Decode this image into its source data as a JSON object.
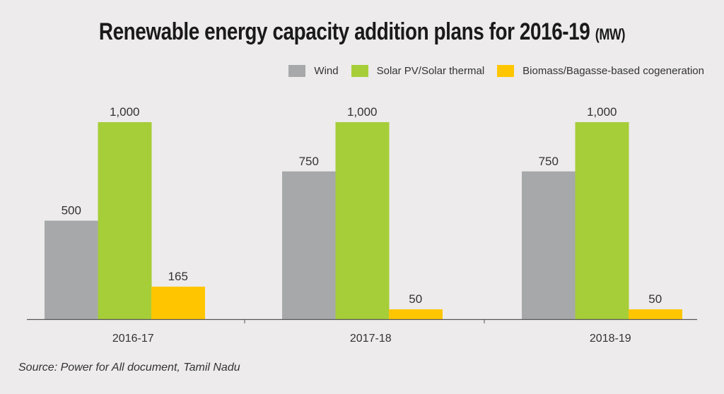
{
  "chart_data": {
    "type": "bar",
    "title": "Renewable energy capacity addition plans for 2016-19",
    "title_unit": "(MW)",
    "xlabel": "",
    "ylabel": "",
    "ylim": [
      0,
      1000
    ],
    "grid": false,
    "legend_position": "top-right",
    "categories": [
      "2016-17",
      "2017-18",
      "2018-19"
    ],
    "series": [
      {
        "name": "Wind",
        "color": "#a7a8aa",
        "values": [
          500,
          750,
          750
        ],
        "labels": [
          "500",
          "750",
          "750"
        ]
      },
      {
        "name": "Solar PV/Solar thermal",
        "color": "#a6ce39",
        "values": [
          1000,
          1000,
          1000
        ],
        "labels": [
          "1,000",
          "1,000",
          "1,000"
        ]
      },
      {
        "name": "Biomass/Bagasse-based cogeneration",
        "color": "#ffc600",
        "values": [
          165,
          50,
          50
        ],
        "labels": [
          "165",
          "50",
          "50"
        ]
      }
    ]
  },
  "source": "Source: Power for All document, Tamil Nadu"
}
